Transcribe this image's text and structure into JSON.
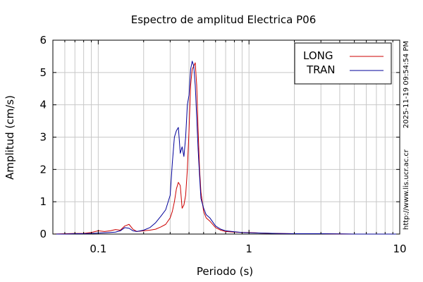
{
  "chart_data": {
    "type": "line",
    "title": "Espectro de amplitud Electrica P06",
    "xlabel": "Periodo (s)",
    "ylabel": "Amplitud (cm/s)",
    "x_scale": "log",
    "xlim": [
      0.05,
      10
    ],
    "ylim": [
      0,
      6
    ],
    "grid": true,
    "legend_position": "top-right",
    "x_ticks": [
      {
        "value": 0.1,
        "label": "0.1"
      },
      {
        "value": 1,
        "label": "1"
      },
      {
        "value": 10,
        "label": "10"
      }
    ],
    "y_ticks": [
      {
        "value": 0,
        "label": "0"
      },
      {
        "value": 1,
        "label": "1"
      },
      {
        "value": 2,
        "label": "2"
      },
      {
        "value": 3,
        "label": "3"
      },
      {
        "value": 4,
        "label": "4"
      },
      {
        "value": 5,
        "label": "5"
      },
      {
        "value": 6,
        "label": "6"
      }
    ],
    "annotations": {
      "timestamp": "2025-11-19 09:54:54 PM",
      "url": "http://www.lis.ucr.ac.cr"
    },
    "series": [
      {
        "name": "LONG",
        "color": "#cc0000",
        "x": [
          0.05,
          0.06,
          0.07,
          0.08,
          0.09,
          0.1,
          0.11,
          0.12,
          0.13,
          0.14,
          0.15,
          0.16,
          0.17,
          0.18,
          0.2,
          0.22,
          0.24,
          0.26,
          0.28,
          0.3,
          0.31,
          0.32,
          0.33,
          0.34,
          0.35,
          0.36,
          0.37,
          0.38,
          0.39,
          0.4,
          0.41,
          0.42,
          0.43,
          0.44,
          0.45,
          0.46,
          0.47,
          0.48,
          0.5,
          0.52,
          0.55,
          0.6,
          0.65,
          0.7,
          0.8,
          0.9,
          1.0,
          1.2,
          1.5,
          2.0,
          3.0,
          5.0,
          10.0
        ],
        "y": [
          0.0,
          0.01,
          0.02,
          0.02,
          0.05,
          0.1,
          0.08,
          0.1,
          0.14,
          0.12,
          0.25,
          0.3,
          0.15,
          0.08,
          0.1,
          0.12,
          0.15,
          0.22,
          0.3,
          0.5,
          0.7,
          1.0,
          1.4,
          1.6,
          1.5,
          0.8,
          0.9,
          1.2,
          2.0,
          3.2,
          4.6,
          5.1,
          5.2,
          5.3,
          4.6,
          3.2,
          2.0,
          1.3,
          0.7,
          0.5,
          0.4,
          0.2,
          0.12,
          0.08,
          0.06,
          0.05,
          0.05,
          0.03,
          0.02,
          0.01,
          0.01,
          0.0,
          0.0
        ]
      },
      {
        "name": "TRAN",
        "color": "#000099",
        "x": [
          0.05,
          0.06,
          0.07,
          0.08,
          0.09,
          0.1,
          0.11,
          0.12,
          0.13,
          0.14,
          0.15,
          0.16,
          0.17,
          0.18,
          0.2,
          0.22,
          0.24,
          0.26,
          0.28,
          0.3,
          0.31,
          0.32,
          0.33,
          0.34,
          0.35,
          0.36,
          0.37,
          0.38,
          0.39,
          0.4,
          0.41,
          0.42,
          0.43,
          0.44,
          0.45,
          0.46,
          0.47,
          0.48,
          0.5,
          0.52,
          0.55,
          0.6,
          0.65,
          0.7,
          0.8,
          0.9,
          1.0,
          1.2,
          1.5,
          2.0,
          3.0,
          5.0,
          10.0
        ],
        "y": [
          0.0,
          0.0,
          0.01,
          0.01,
          0.02,
          0.03,
          0.04,
          0.05,
          0.06,
          0.1,
          0.2,
          0.18,
          0.1,
          0.08,
          0.12,
          0.2,
          0.35,
          0.55,
          0.75,
          1.2,
          2.2,
          3.0,
          3.2,
          3.3,
          2.5,
          2.7,
          2.4,
          3.0,
          4.0,
          4.3,
          5.1,
          5.35,
          5.2,
          4.6,
          3.6,
          2.6,
          1.8,
          1.1,
          0.8,
          0.6,
          0.5,
          0.25,
          0.15,
          0.1,
          0.07,
          0.05,
          0.04,
          0.03,
          0.02,
          0.01,
          0.01,
          0.0,
          0.0
        ]
      }
    ]
  }
}
